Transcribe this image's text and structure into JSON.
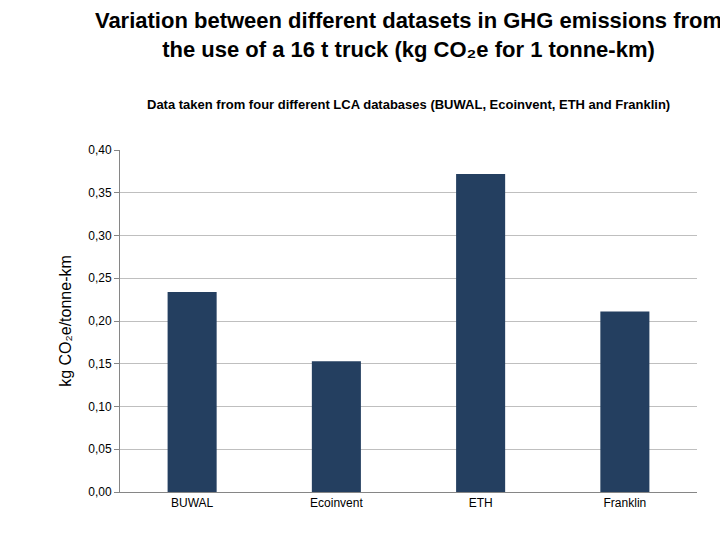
{
  "chart_data": {
    "type": "bar",
    "title": "Variation between different datasets in GHG emissions from\nthe use of a 16 t truck (kg CO₂e for 1 tonne-km)",
    "subtitle": "Data taken from four different LCA databases (BUWAL, Ecoinvent, ETH and Franklin)",
    "y_label": "kg CO₂e/tonne-km",
    "categories": [
      "BUWAL",
      "Ecoinvent",
      "ETH",
      "Franklin"
    ],
    "values": [
      0.234,
      0.153,
      0.372,
      0.211
    ],
    "color": "#243f60",
    "ylim": [
      0,
      0.4
    ],
    "yticks": [
      {
        "value": 0,
        "label": "0,00"
      },
      {
        "value": 0.05,
        "label": "0,05"
      },
      {
        "value": 0.1,
        "label": "0,10"
      },
      {
        "value": 0.15,
        "label": "0,15"
      },
      {
        "value": 0.2,
        "label": "0,20"
      },
      {
        "value": 0.25,
        "label": "0,25"
      },
      {
        "value": 0.3,
        "label": "0,30"
      },
      {
        "value": 0.35,
        "label": "0,35"
      },
      {
        "value": 0.4,
        "label": "0,40"
      }
    ],
    "grid": true
  }
}
